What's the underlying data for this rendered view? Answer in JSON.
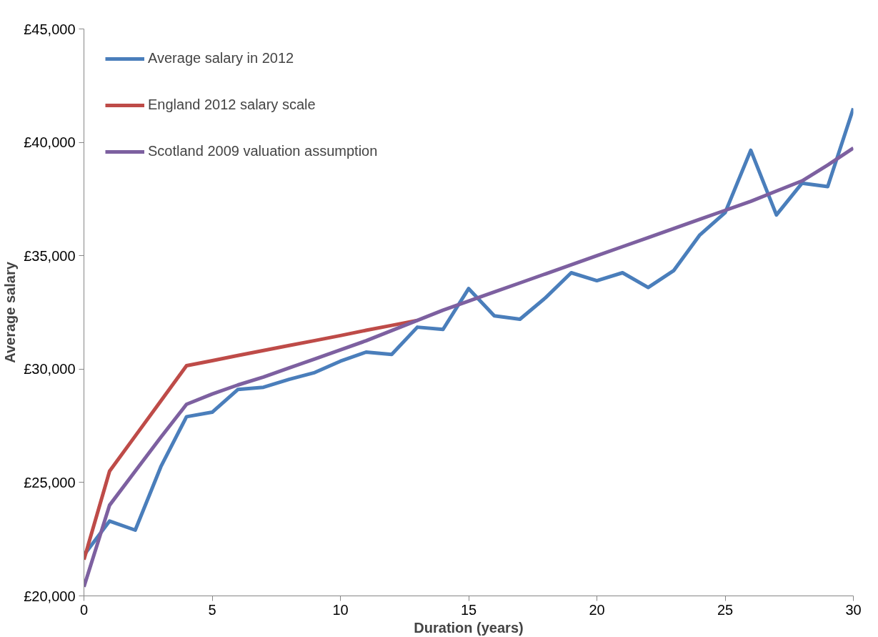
{
  "chart_data": {
    "type": "line",
    "xlabel": "Duration (years)",
    "ylabel": "Average salary",
    "x": [
      0,
      1,
      2,
      3,
      4,
      5,
      6,
      7,
      8,
      9,
      10,
      11,
      12,
      13,
      14,
      15,
      16,
      17,
      18,
      19,
      20,
      21,
      22,
      23,
      24,
      25,
      26,
      27,
      28,
      29,
      30
    ],
    "series": [
      {
        "name": "Average salary in 2012",
        "color": "#4a7ebb",
        "values": [
          21800,
          23300,
          22900,
          25700,
          27900,
          28100,
          29100,
          29200,
          29550,
          29850,
          30350,
          30750,
          30650,
          31850,
          31750,
          33550,
          32350,
          32200,
          33150,
          34250,
          33900,
          34250,
          33600,
          34350,
          35900,
          36900,
          39650,
          36800,
          38200,
          38050,
          41500
        ]
      },
      {
        "name": "England 2012 salary scale",
        "color": "#be4b48",
        "values": [
          21600,
          25500,
          27050,
          28600,
          30150,
          30370,
          30600,
          30820,
          31040,
          31260,
          31480,
          31710,
          31930,
          32150,
          null,
          null,
          null,
          null,
          null,
          null,
          null,
          null,
          null,
          null,
          null,
          null,
          null,
          null,
          null,
          null,
          null
        ]
      },
      {
        "name": "Scotland 2009 valuation assumption",
        "color": "#7d60a0",
        "values": [
          20400,
          24000,
          25500,
          27000,
          28450,
          28900,
          29300,
          29650,
          30050,
          30450,
          30850,
          31250,
          31700,
          32150,
          32600,
          33000,
          33400,
          33800,
          34200,
          34600,
          35000,
          35400,
          35800,
          36200,
          36600,
          37000,
          37400,
          37850,
          38300,
          39000,
          39750
        ]
      }
    ],
    "xlim": [
      0,
      30
    ],
    "xticks": [
      0,
      5,
      10,
      15,
      20,
      25,
      30
    ],
    "ylim": [
      20000,
      45000
    ],
    "yticks": [
      {
        "value": 20000,
        "label": "£20,000"
      },
      {
        "value": 25000,
        "label": "£25,000"
      },
      {
        "value": 30000,
        "label": "£30,000"
      },
      {
        "value": 35000,
        "label": "£35,000"
      },
      {
        "value": 40000,
        "label": "£40,000"
      },
      {
        "value": 45000,
        "label": "£45,000"
      }
    ],
    "grid": false,
    "legend": "top left",
    "marker": "none",
    "line_style": "solid"
  }
}
